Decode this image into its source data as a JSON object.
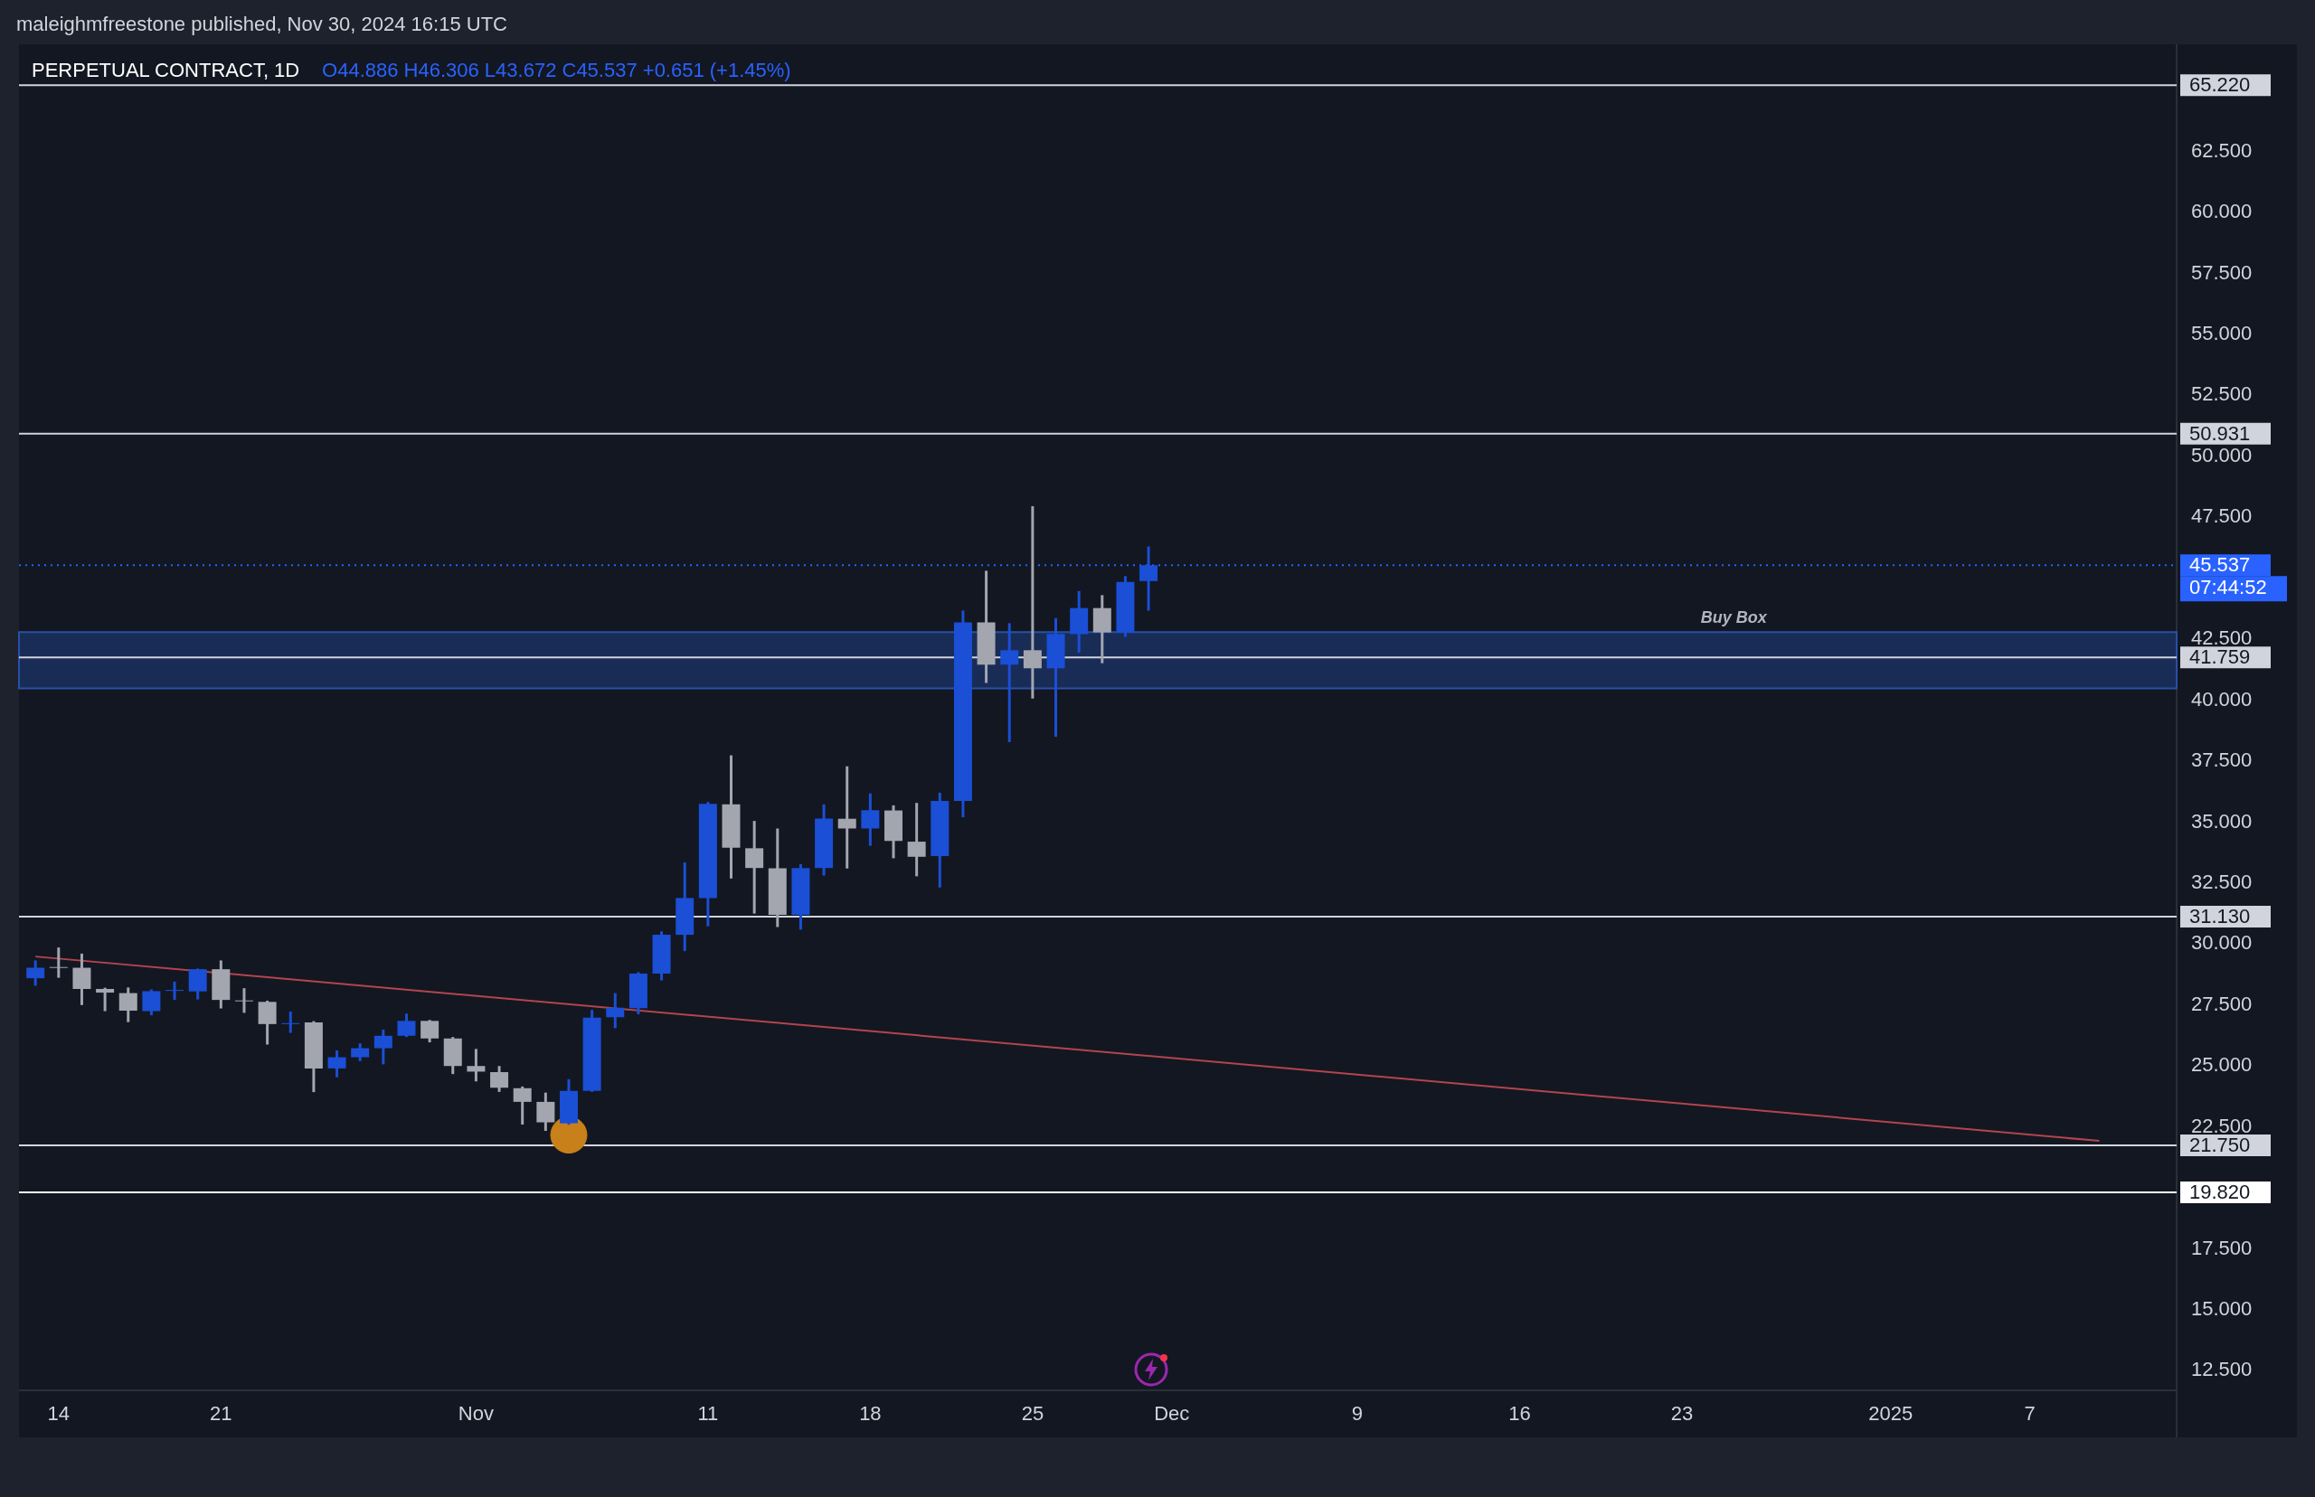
{
  "chart_data": {
    "type": "candlestick",
    "title": "PERPETUAL CONTRACT, 1D",
    "subtitle": "O44.886 H46.306 L43.672 C45.537 +0.651 (+1.45%)",
    "annotations": [
      "maleighmfreestone published, Nov 30, 2024 16:15 UTC",
      "07:44:52"
    ],
    "x": [
      "2024-10-13",
      "2024-10-14",
      "2024-10-15",
      "2024-10-16",
      "2024-10-17",
      "2024-10-18",
      "2024-10-19",
      "2024-10-20",
      "2024-10-21",
      "2024-10-22",
      "2024-10-23",
      "2024-10-24",
      "2024-10-25",
      "2024-10-26",
      "2024-10-27",
      "2024-10-28",
      "2024-10-29",
      "2024-10-30",
      "2024-10-31",
      "2024-11-01",
      "2024-11-02",
      "2024-11-03",
      "2024-11-04",
      "2024-11-05",
      "2024-11-06",
      "2024-11-07",
      "2024-11-08",
      "2024-11-09",
      "2024-11-10",
      "2024-11-11",
      "2024-11-12",
      "2024-11-13",
      "2024-11-14",
      "2024-11-15",
      "2024-11-16",
      "2024-11-17",
      "2024-11-18",
      "2024-11-19",
      "2024-11-20",
      "2024-11-21",
      "2024-11-22",
      "2024-11-23",
      "2024-11-24",
      "2024-11-25",
      "2024-11-26",
      "2024-11-27",
      "2024-11-28",
      "2024-11-29",
      "2024-11-30"
    ],
    "ohlc": [
      [
        28.6,
        29.33,
        28.29,
        29.03
      ],
      [
        29.06,
        29.86,
        28.62,
        29.04
      ],
      [
        29.03,
        29.61,
        27.5,
        28.16
      ],
      [
        28.16,
        28.21,
        27.25,
        28.01
      ],
      [
        27.99,
        28.22,
        26.8,
        27.27
      ],
      [
        27.25,
        28.14,
        27.08,
        28.07
      ],
      [
        28.08,
        28.46,
        27.71,
        28.12
      ],
      [
        28.06,
        29.0,
        27.73,
        28.97
      ],
      [
        28.97,
        29.33,
        27.36,
        27.71
      ],
      [
        27.69,
        28.19,
        27.18,
        27.67
      ],
      [
        27.63,
        27.68,
        25.88,
        26.72
      ],
      [
        26.72,
        27.23,
        26.36,
        26.76
      ],
      [
        26.79,
        26.84,
        23.93,
        24.9
      ],
      [
        24.9,
        25.64,
        24.54,
        25.36
      ],
      [
        25.36,
        25.93,
        25.2,
        25.73
      ],
      [
        25.73,
        26.49,
        25.07,
        26.24
      ],
      [
        26.24,
        27.15,
        26.19,
        26.85
      ],
      [
        26.85,
        26.89,
        25.97,
        26.13
      ],
      [
        26.13,
        26.19,
        24.67,
        25.0
      ],
      [
        25.0,
        25.7,
        24.37,
        24.77
      ],
      [
        24.75,
        25.0,
        23.94,
        24.11
      ],
      [
        24.09,
        24.16,
        22.6,
        23.53
      ],
      [
        23.53,
        23.91,
        22.34,
        22.69
      ],
      [
        22.65,
        24.46,
        22.59,
        23.98
      ],
      [
        23.98,
        27.3,
        23.94,
        26.98
      ],
      [
        27.0,
        27.99,
        26.55,
        27.39
      ],
      [
        27.37,
        28.85,
        27.12,
        28.79
      ],
      [
        28.79,
        30.52,
        28.51,
        30.38
      ],
      [
        30.38,
        33.35,
        29.71,
        31.89
      ],
      [
        31.89,
        35.83,
        30.73,
        35.75
      ],
      [
        35.73,
        37.74,
        32.69,
        33.95
      ],
      [
        33.93,
        35.05,
        31.25,
        33.12
      ],
      [
        33.11,
        34.74,
        30.7,
        31.2
      ],
      [
        31.2,
        33.28,
        30.59,
        33.12
      ],
      [
        33.12,
        35.73,
        32.81,
        35.15
      ],
      [
        35.14,
        37.29,
        33.1,
        34.74
      ],
      [
        34.74,
        36.18,
        34.03,
        35.49
      ],
      [
        35.48,
        35.69,
        33.52,
        34.23
      ],
      [
        34.2,
        35.79,
        32.78,
        33.58
      ],
      [
        33.61,
        36.21,
        32.32,
        35.87
      ],
      [
        35.87,
        43.68,
        35.2,
        43.19
      ],
      [
        43.19,
        45.31,
        40.71,
        41.46
      ],
      [
        41.46,
        43.16,
        38.28,
        42.05
      ],
      [
        42.05,
        47.96,
        40.07,
        41.31
      ],
      [
        41.31,
        43.37,
        38.5,
        42.72
      ],
      [
        42.71,
        44.48,
        41.95,
        43.78
      ],
      [
        43.78,
        44.31,
        41.52,
        42.78
      ],
      [
        42.78,
        45.09,
        42.6,
        44.85
      ],
      [
        44.886,
        46.306,
        43.672,
        45.537
      ]
    ],
    "colors": [
      "#1a4fd6",
      "#a3a6af",
      "#a3a6af",
      "#a3a6af",
      "#a3a6af",
      "#1a4fd6",
      "#1a4fd6",
      "#1a4fd6",
      "#a3a6af",
      "#a3a6af",
      "#a3a6af",
      "#1a4fd6",
      "#a3a6af",
      "#1a4fd6",
      "#1a4fd6",
      "#1a4fd6",
      "#1a4fd6",
      "#a3a6af",
      "#a3a6af",
      "#a3a6af",
      "#a3a6af",
      "#a3a6af",
      "#a3a6af",
      "#1a4fd6",
      "#1a4fd6",
      "#1a4fd6",
      "#1a4fd6",
      "#1a4fd6",
      "#1a4fd6",
      "#1a4fd6",
      "#a3a6af",
      "#a3a6af",
      "#a3a6af",
      "#1a4fd6",
      "#1a4fd6",
      "#a3a6af",
      "#1a4fd6",
      "#a3a6af",
      "#a3a6af",
      "#1a4fd6",
      "#1a4fd6",
      "#a3a6af",
      "#1a4fd6",
      "#a3a6af",
      "#1a4fd6",
      "#1a4fd6",
      "#a3a6af",
      "#1a4fd6",
      "#1a4fd6"
    ],
    "series": [
      {
        "type": "line",
        "x": [
          "2024-10-13",
          "2025-01-10"
        ],
        "values": [
          29.49,
          21.93
        ],
        "color": "#b2454f"
      },
      {
        "type": "scatter",
        "x": [
          "2024-11-05"
        ],
        "values": [
          22.17
        ],
        "color": "#c8811a",
        "marker": "circle"
      }
    ],
    "xlim": [
      "2024-10-12T07:00",
      "2025-01-13T08:00"
    ],
    "xticks": [
      {
        "value": "2024-10-14",
        "label": "14"
      },
      {
        "value": "2024-10-21",
        "label": "21"
      },
      {
        "value": "2024-11-01",
        "label": "Nov"
      },
      {
        "value": "2024-11-11",
        "label": "11"
      },
      {
        "value": "2024-11-18",
        "label": "18"
      },
      {
        "value": "2024-11-25",
        "label": "25"
      },
      {
        "value": "2024-12-01",
        "label": "Dec"
      },
      {
        "value": "2024-12-09",
        "label": "9"
      },
      {
        "value": "2024-12-16",
        "label": "16"
      },
      {
        "value": "2024-12-23",
        "label": "23"
      },
      {
        "value": "2025-01-01",
        "label": "2025"
      },
      {
        "value": "2025-01-07",
        "label": "7"
      }
    ],
    "ylim": [
      11.7,
      66.9
    ],
    "yticks": [
      {
        "value": 12.5,
        "label": "12.500"
      },
      {
        "value": 15,
        "label": "15.000"
      },
      {
        "value": 17.5,
        "label": "17.500"
      },
      {
        "value": 22.5,
        "label": "22.500"
      },
      {
        "value": 25,
        "label": "25.000"
      },
      {
        "value": 27.5,
        "label": "27.500"
      },
      {
        "value": 30,
        "label": "30.000"
      },
      {
        "value": 32.5,
        "label": "32.500"
      },
      {
        "value": 35,
        "label": "35.000"
      },
      {
        "value": 37.5,
        "label": "37.500"
      },
      {
        "value": 40,
        "label": "40.000"
      },
      {
        "value": 42.5,
        "label": "42.500"
      },
      {
        "value": 47.5,
        "label": "47.500"
      },
      {
        "value": 50,
        "label": "50.000"
      },
      {
        "value": 52.5,
        "label": "52.500"
      },
      {
        "value": 55,
        "label": "55.000"
      },
      {
        "value": 57.5,
        "label": "57.500"
      },
      {
        "value": 60,
        "label": "60.000"
      },
      {
        "value": 62.5,
        "label": "62.500"
      }
    ],
    "ref_lines": [
      {
        "axis": "y",
        "value": 65.22,
        "label": "65.220",
        "color": "#d1d4dc"
      },
      {
        "axis": "y",
        "value": 50.931,
        "label": "50.931",
        "color": "#d1d4dc"
      },
      {
        "axis": "y",
        "value": 41.759,
        "label": "41.759",
        "color": "#d1d4dc"
      },
      {
        "axis": "y",
        "value": 31.13,
        "label": "31.130",
        "color": "#d1d4dc"
      },
      {
        "axis": "y",
        "value": 21.75,
        "label": "21.750",
        "color": "#d1d4dc"
      },
      {
        "axis": "y",
        "value": 19.82,
        "label": "19.820",
        "color": "#ffffff"
      },
      {
        "axis": "y",
        "value": 45.537,
        "label": "45.537",
        "color": "#2962ff",
        "line_style": "dotted"
      }
    ],
    "bands": [
      {
        "axis": "y",
        "from": 40.49,
        "to": 42.79,
        "label": "Buy Box",
        "color": "#1c3a7a"
      }
    ]
  }
}
